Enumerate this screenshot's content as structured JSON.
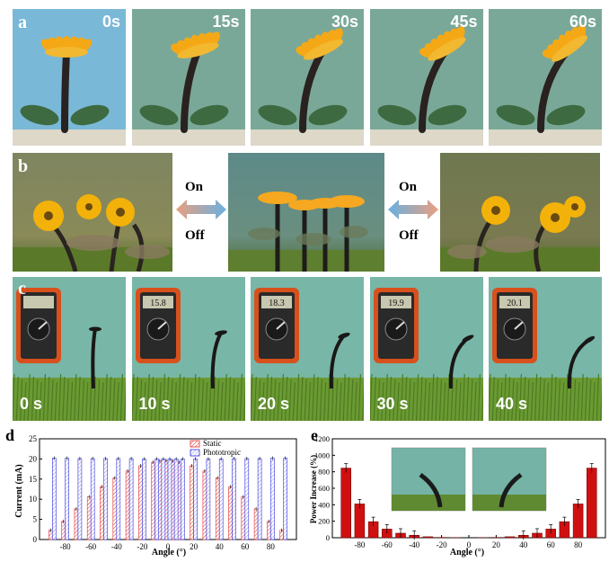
{
  "panel_a": {
    "letter": "a",
    "frames": [
      {
        "time": "0s",
        "bend": 0
      },
      {
        "time": "15s",
        "bend": 0.45
      },
      {
        "time": "30s",
        "bend": 0.7
      },
      {
        "time": "45s",
        "bend": 0.85
      },
      {
        "time": "60s",
        "bend": 1.0
      }
    ]
  },
  "panel_b": {
    "letter": "b",
    "switch_left": {
      "on": "On",
      "off": "Off"
    },
    "switch_right": {
      "on": "On",
      "off": "Off"
    }
  },
  "panel_c": {
    "letter": "c",
    "frames": [
      {
        "time": "0 s",
        "meter": "",
        "bend": 0
      },
      {
        "time": "10 s",
        "meter": "15.8",
        "bend": 0.35
      },
      {
        "time": "20 s",
        "meter": "18.3",
        "bend": 0.6
      },
      {
        "time": "30 s",
        "meter": "19.9",
        "bend": 0.85
      },
      {
        "time": "40 s",
        "meter": "20.1",
        "bend": 1.0
      }
    ]
  },
  "panel_d": {
    "letter": "d",
    "chart_data": {
      "type": "bar",
      "xlabel": "Angle (°)",
      "ylabel": "Current (mA)",
      "ylim": [
        0,
        25
      ],
      "yticks": [
        0,
        5,
        10,
        15,
        20,
        25
      ],
      "xticks": [
        -80,
        -60,
        -40,
        -20,
        0,
        20,
        40,
        60,
        80
      ],
      "x": [
        -90,
        -80,
        -70,
        -60,
        -50,
        -40,
        -30,
        -20,
        -10,
        -5,
        0,
        5,
        10,
        20,
        30,
        40,
        50,
        60,
        70,
        80,
        90
      ],
      "series": [
        {
          "name": "Static",
          "color": "#e03030",
          "style": "hatched",
          "values": [
            2.3,
            4.5,
            7.6,
            10.6,
            13.1,
            15.3,
            17.0,
            18.3,
            19.2,
            19.5,
            19.6,
            19.5,
            19.2,
            18.3,
            17.0,
            15.3,
            13.1,
            10.6,
            7.6,
            4.5,
            2.3
          ]
        },
        {
          "name": "Phototropic",
          "color": "#3030e0",
          "style": "hatched",
          "values": [
            20.2,
            20.2,
            20.1,
            20.1,
            20.1,
            20.1,
            20.1,
            20.0,
            20.0,
            20.0,
            20.0,
            20.0,
            20.0,
            20.0,
            20.0,
            20.0,
            20.1,
            20.1,
            20.1,
            20.2,
            20.2
          ]
        }
      ],
      "legend": "top-center"
    }
  },
  "panel_e": {
    "letter": "e",
    "chart_data": {
      "type": "bar",
      "xlabel": "Angle (°)",
      "ylabel": "Power Increase (%)",
      "ylim": [
        0,
        1200
      ],
      "yticks": [
        0,
        200,
        400,
        600,
        800,
        1000,
        1200
      ],
      "xticks": [
        -80,
        -60,
        -40,
        -20,
        0,
        20,
        40,
        60,
        80
      ],
      "x": [
        -90,
        -80,
        -70,
        -60,
        -50,
        -40,
        -30,
        -20,
        -10,
        0,
        10,
        20,
        30,
        40,
        50,
        60,
        70,
        80,
        90
      ],
      "series": [
        {
          "name": "",
          "color": "#d01010",
          "values": [
            845,
            410,
            195,
            105,
            55,
            30,
            12,
            4,
            1,
            0,
            1,
            4,
            12,
            30,
            55,
            105,
            195,
            410,
            845
          ]
        }
      ]
    }
  }
}
